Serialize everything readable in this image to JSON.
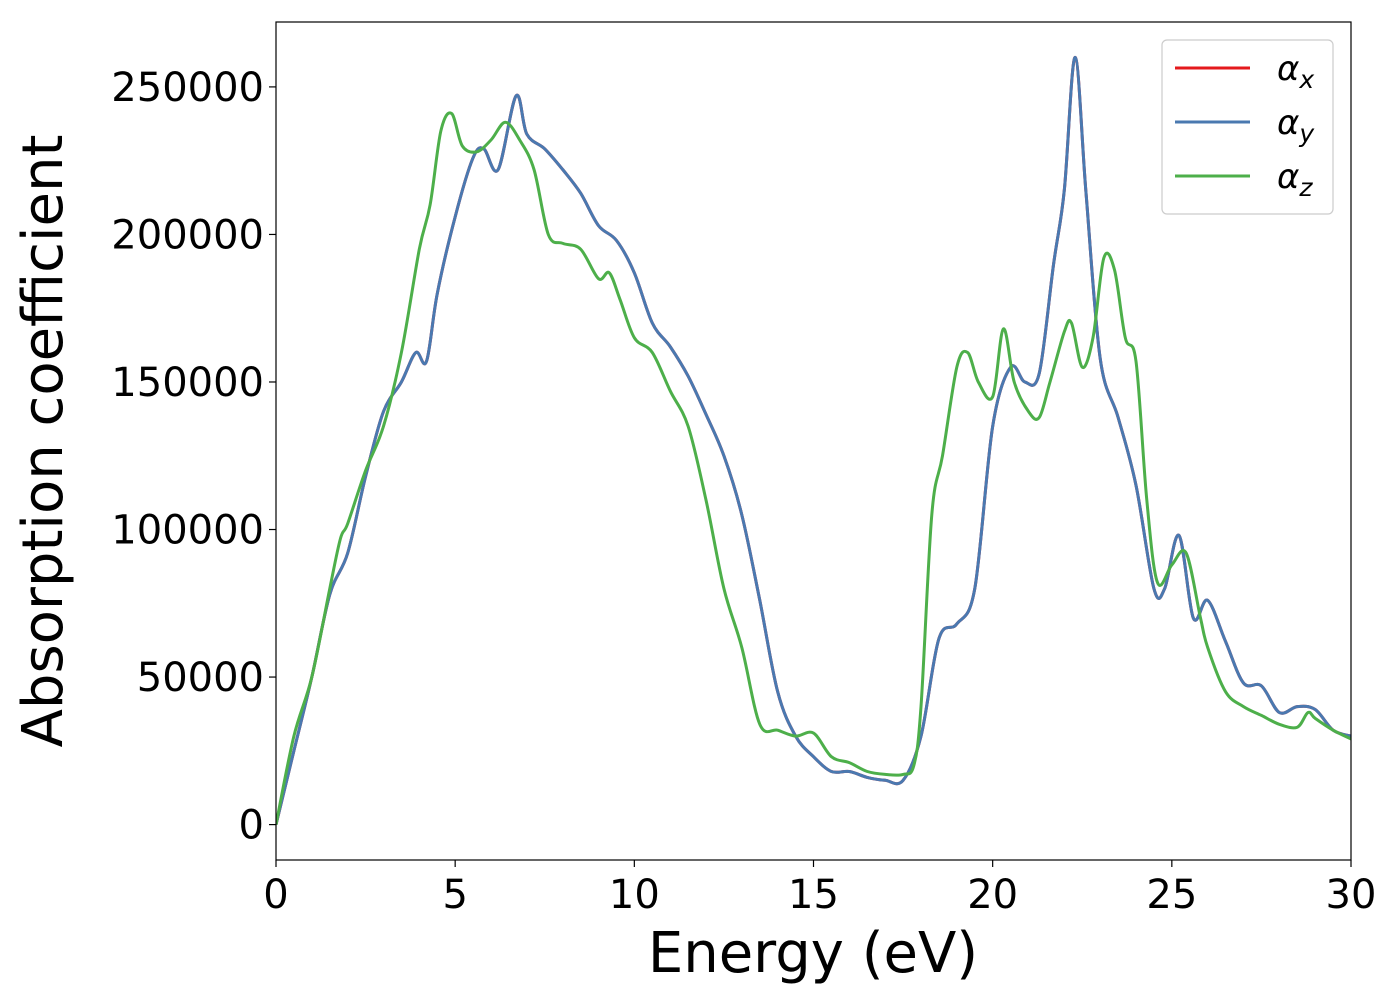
{
  "chart_data": {
    "type": "line",
    "title": "",
    "xlabel": "Energy (eV)",
    "ylabel": "Absorption coefficient",
    "xlim": [
      0,
      30
    ],
    "ylim": [
      -12000,
      272000
    ],
    "xticks": [
      0,
      5,
      10,
      15,
      20,
      25,
      30
    ],
    "yticks": [
      0,
      50000,
      100000,
      150000,
      200000,
      250000
    ],
    "grid": false,
    "legend_position": "top-right",
    "series": [
      {
        "name": "α",
        "subscript": "x",
        "color": "#e41a1c",
        "x": [
          0,
          0.5,
          1,
          1.5,
          2,
          2.5,
          3,
          3.5,
          3.9,
          4.2,
          4.5,
          5,
          5.5,
          5.8,
          6.2,
          6.7,
          7,
          7.5,
          8,
          8.5,
          9,
          9.5,
          10,
          10.5,
          11,
          11.5,
          12,
          12.5,
          13,
          13.5,
          14,
          14.5,
          15,
          15.5,
          16,
          16.5,
          17,
          17.5,
          18,
          18.5,
          19,
          19.5,
          20,
          20.5,
          20.9,
          21.3,
          21.7,
          22.0,
          22.3,
          22.6,
          23,
          23.5,
          24,
          24.5,
          24.8,
          25.2,
          25.6,
          26,
          26.5,
          27,
          27.5,
          28,
          28.5,
          29,
          29.5,
          30
        ],
        "values": [
          0,
          25000,
          50000,
          78000,
          92000,
          118000,
          140000,
          150000,
          160000,
          157000,
          180000,
          206000,
          226000,
          229000,
          222000,
          247000,
          234000,
          229000,
          222000,
          214000,
          203000,
          198000,
          187000,
          170000,
          162000,
          152000,
          139000,
          125000,
          105000,
          76000,
          45000,
          30000,
          23000,
          18000,
          18000,
          16000,
          15000,
          15000,
          30000,
          63000,
          68000,
          80000,
          135000,
          155000,
          150000,
          153000,
          190000,
          215000,
          260000,
          215000,
          158000,
          138000,
          115000,
          80000,
          80000,
          98000,
          70000,
          76000,
          62000,
          48000,
          47000,
          38000,
          40000,
          39000,
          32000,
          30000
        ]
      },
      {
        "name": "α",
        "subscript": "y",
        "color": "#4a79b0",
        "x": [
          0,
          0.5,
          1,
          1.5,
          2,
          2.5,
          3,
          3.5,
          3.9,
          4.2,
          4.5,
          5,
          5.5,
          5.8,
          6.2,
          6.7,
          7,
          7.5,
          8,
          8.5,
          9,
          9.5,
          10,
          10.5,
          11,
          11.5,
          12,
          12.5,
          13,
          13.5,
          14,
          14.5,
          15,
          15.5,
          16,
          16.5,
          17,
          17.5,
          18,
          18.5,
          19,
          19.5,
          20,
          20.5,
          20.9,
          21.3,
          21.7,
          22.0,
          22.3,
          22.6,
          23,
          23.5,
          24,
          24.5,
          24.8,
          25.2,
          25.6,
          26,
          26.5,
          27,
          27.5,
          28,
          28.5,
          29,
          29.5,
          30
        ],
        "values": [
          0,
          25000,
          50000,
          78000,
          92000,
          118000,
          140000,
          150000,
          160000,
          157000,
          180000,
          206000,
          226000,
          229000,
          222000,
          247000,
          234000,
          229000,
          222000,
          214000,
          203000,
          198000,
          187000,
          170000,
          162000,
          152000,
          139000,
          125000,
          105000,
          76000,
          45000,
          30000,
          23000,
          18000,
          18000,
          16000,
          15000,
          15000,
          30000,
          63000,
          68000,
          80000,
          135000,
          155000,
          150000,
          153000,
          190000,
          215000,
          260000,
          215000,
          158000,
          138000,
          115000,
          80000,
          80000,
          98000,
          70000,
          76000,
          62000,
          48000,
          47000,
          38000,
          40000,
          39000,
          32000,
          30000
        ]
      },
      {
        "name": "α",
        "subscript": "z",
        "color": "#4daf4a",
        "x": [
          0,
          0.5,
          1,
          1.5,
          1.8,
          2,
          2.5,
          3,
          3.5,
          4,
          4.3,
          4.6,
          4.9,
          5.2,
          5.6,
          6,
          6.4,
          6.8,
          7.2,
          7.6,
          8,
          8.5,
          9,
          9.3,
          9.6,
          10,
          10.5,
          11,
          11.5,
          12,
          12.5,
          13,
          13.5,
          14,
          14.5,
          15,
          15.5,
          16,
          16.5,
          17,
          17.5,
          17.8,
          18,
          18.3,
          18.6,
          19,
          19.3,
          19.6,
          20,
          20.3,
          20.6,
          21,
          21.3,
          21.6,
          22,
          22.2,
          22.5,
          22.8,
          23.1,
          23.4,
          23.7,
          24,
          24.3,
          24.6,
          25,
          25.4,
          25.8,
          26,
          26.5,
          27,
          27.5,
          28,
          28.5,
          28.8,
          29,
          29.5,
          30
        ],
        "values": [
          0,
          30000,
          50000,
          80000,
          97000,
          102000,
          120000,
          135000,
          160000,
          195000,
          210000,
          235000,
          241000,
          230000,
          228000,
          232000,
          238000,
          232000,
          222000,
          200000,
          197000,
          195000,
          185000,
          187000,
          178000,
          165000,
          160000,
          147000,
          135000,
          110000,
          80000,
          60000,
          34000,
          32000,
          30000,
          31000,
          23000,
          21000,
          18000,
          17000,
          17000,
          20000,
          40000,
          105000,
          125000,
          155000,
          160000,
          150000,
          145000,
          168000,
          150000,
          140000,
          138000,
          150000,
          167000,
          170000,
          155000,
          165000,
          192000,
          188000,
          165000,
          157000,
          110000,
          82000,
          88000,
          92000,
          70000,
          60000,
          45000,
          40000,
          37000,
          34000,
          33000,
          38000,
          36000,
          32000,
          29000
        ]
      }
    ]
  }
}
